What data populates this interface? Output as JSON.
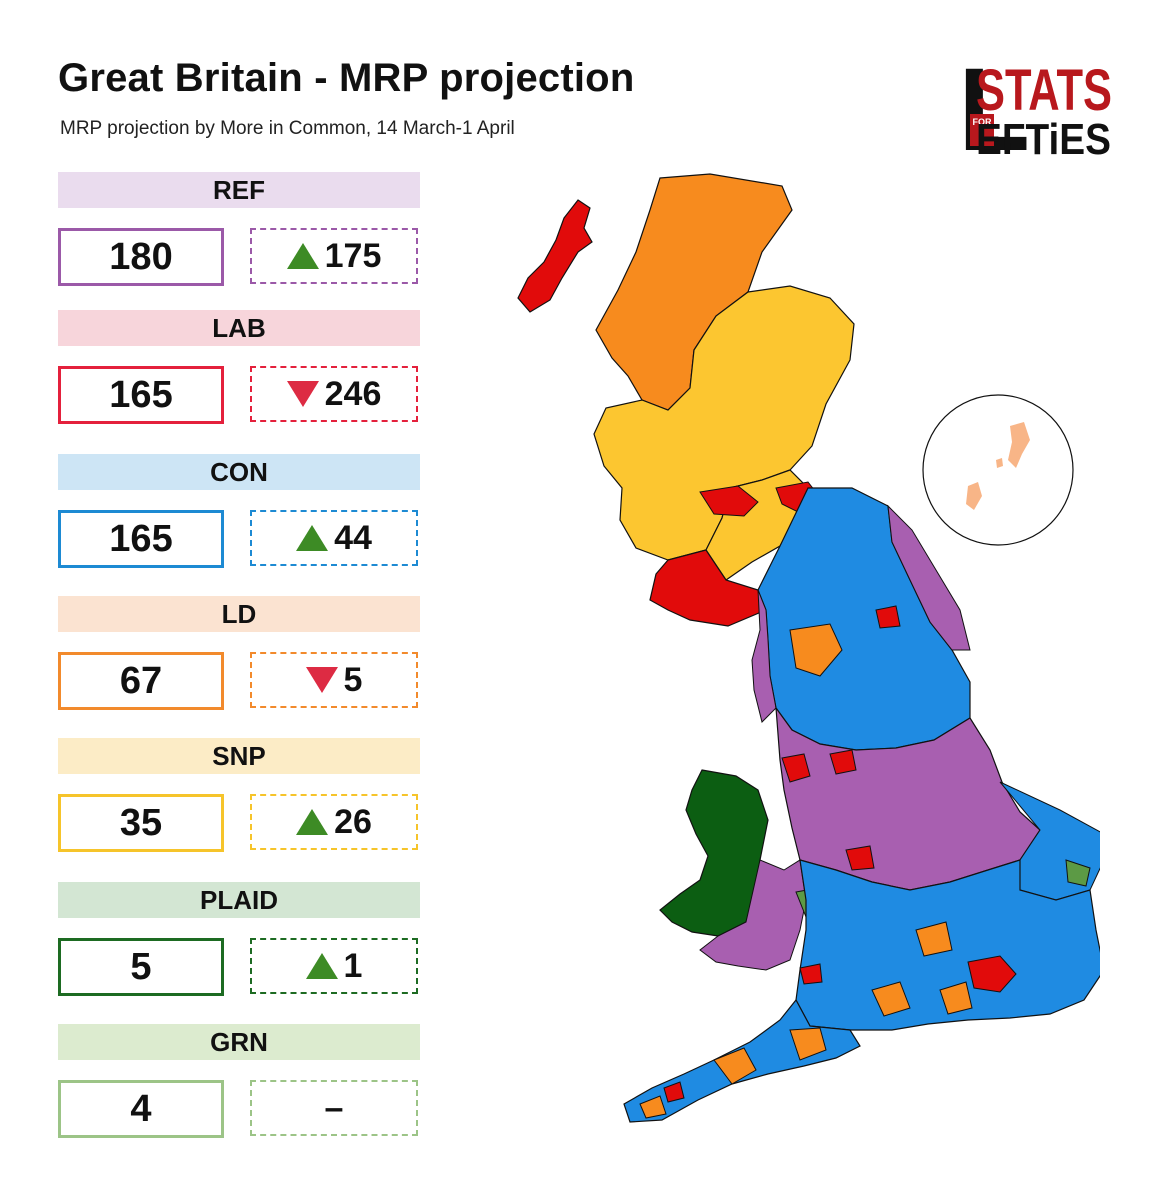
{
  "header": {
    "title": "Great Britain - MRP projection",
    "subtitle": "MRP projection by More in Common, 14 March-1 April"
  },
  "logo": {
    "big_letter": "L",
    "word_top": "STATS",
    "for": "FOR",
    "word_bottom": "EFTiES"
  },
  "parties": [
    {
      "label": "REF",
      "seats": "180",
      "change": "175",
      "direction": "up",
      "label_bg": "#eadcee",
      "border": "#9b59a8"
    },
    {
      "label": "LAB",
      "seats": "165",
      "change": "246",
      "direction": "down",
      "label_bg": "#f7d5db",
      "border": "#e4203c"
    },
    {
      "label": "CON",
      "seats": "165",
      "change": "44",
      "direction": "up",
      "label_bg": "#cde5f5",
      "border": "#1d8ad3"
    },
    {
      "label": "LD",
      "seats": "67",
      "change": "5",
      "direction": "down",
      "label_bg": "#fbe3d1",
      "border": "#f28a2c"
    },
    {
      "label": "SNP",
      "seats": "35",
      "change": "26",
      "direction": "up",
      "label_bg": "#fcecc6",
      "border": "#f6c42a"
    },
    {
      "label": "PLAID",
      "seats": "5",
      "change": "1",
      "direction": "up",
      "label_bg": "#d3e6d3",
      "border": "#1d6b22"
    },
    {
      "label": "GRN",
      "seats": "4",
      "change": "–",
      "direction": "none",
      "label_bg": "#dcebcf",
      "border": "#9cc487"
    }
  ],
  "map_colors": {
    "REF": "#a85fb0",
    "LAB": "#e10b0b",
    "CON": "#1f8be2",
    "LD": "#f78b1e",
    "SNP": "#fcc630",
    "PLAID": "#0c5e12",
    "GRN": "#5c9a45",
    "Shetland": "#f8b587"
  }
}
